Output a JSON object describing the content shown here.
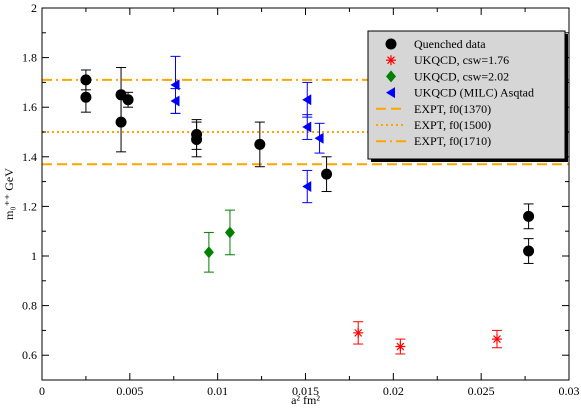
{
  "chart_data": {
    "type": "scatter",
    "title": "",
    "xlabel": "a² fm²",
    "ylabel": "m₀⁺⁺ GeV",
    "xlim": [
      0,
      0.03
    ],
    "ylim": [
      0.5,
      2.0
    ],
    "x_ticks": [
      "0",
      "0.005",
      "0.01",
      "0.015",
      "0.02",
      "0.025",
      "0.03"
    ],
    "y_ticks": [
      "0.6",
      "0.8",
      "1",
      "1.2",
      "1.4",
      "1.6",
      "1.8",
      "2"
    ],
    "legend_position": "top-right",
    "series": [
      {
        "name": "Quenched data",
        "marker": "circle",
        "color": "#000000",
        "points": [
          {
            "x": 0.0025,
            "y": 1.71,
            "err": 0.04
          },
          {
            "x": 0.0025,
            "y": 1.64,
            "err": 0.06
          },
          {
            "x": 0.0045,
            "y": 1.65,
            "err": 0.11
          },
          {
            "x": 0.0045,
            "y": 1.54,
            "err": 0.12
          },
          {
            "x": 0.0049,
            "y": 1.63,
            "err": 0.03
          },
          {
            "x": 0.0088,
            "y": 1.49,
            "err": 0.06
          },
          {
            "x": 0.0088,
            "y": 1.47,
            "err": 0.07
          },
          {
            "x": 0.0124,
            "y": 1.45,
            "err": 0.09
          },
          {
            "x": 0.0162,
            "y": 1.33,
            "err": 0.07
          },
          {
            "x": 0.0277,
            "y": 1.16,
            "err": 0.05
          },
          {
            "x": 0.0277,
            "y": 1.02,
            "err": 0.05
          }
        ]
      },
      {
        "name": "UKQCD, csw=1.76",
        "marker": "asterisk",
        "color": "#ff0000",
        "points": [
          {
            "x": 0.018,
            "y": 0.69,
            "err": 0.045
          },
          {
            "x": 0.0204,
            "y": 0.635,
            "err": 0.03
          },
          {
            "x": 0.0259,
            "y": 0.665,
            "err": 0.035
          }
        ]
      },
      {
        "name": "UKQCD, csw=2.02",
        "marker": "diamond",
        "color": "#008000",
        "points": [
          {
            "x": 0.0095,
            "y": 1.015,
            "err": 0.08
          },
          {
            "x": 0.0107,
            "y": 1.095,
            "err": 0.09
          }
        ]
      },
      {
        "name": "UKQCD (MILC) Asqtad",
        "marker": "triangle-left",
        "color": "#0000ff",
        "points": [
          {
            "x": 0.0076,
            "y": 1.69,
            "err": 0.115
          },
          {
            "x": 0.0076,
            "y": 1.625,
            "err": 0.05
          },
          {
            "x": 0.0151,
            "y": 1.63,
            "err": 0.07
          },
          {
            "x": 0.0151,
            "y": 1.52,
            "err": 0.05
          },
          {
            "x": 0.0158,
            "y": 1.475,
            "err": 0.06
          },
          {
            "x": 0.0151,
            "y": 1.28,
            "err": 0.065
          }
        ]
      }
    ],
    "reference_lines": [
      {
        "name": "EXPT, f0(1370)",
        "y": 1.37,
        "style": "dashed",
        "color": "#ffa500"
      },
      {
        "name": "EXPT, f0(1500)",
        "y": 1.5,
        "style": "dotted",
        "color": "#ffa500"
      },
      {
        "name": "EXPT, f0(1710)",
        "y": 1.71,
        "style": "dashdot",
        "color": "#ffa500"
      }
    ]
  }
}
